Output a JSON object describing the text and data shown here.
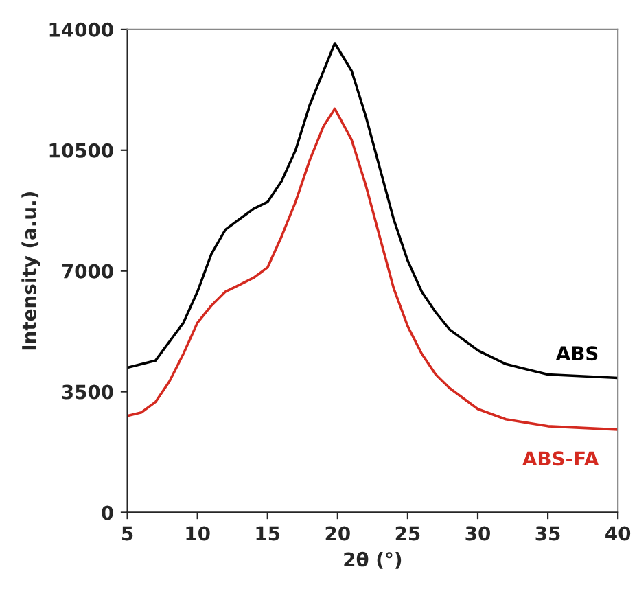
{
  "chart_data": {
    "type": "line",
    "xlabel": "2θ (°)",
    "ylabel": "Intensity (a.u.)",
    "xlim": [
      5,
      40
    ],
    "xticks": [
      5,
      10,
      15,
      20,
      25,
      30,
      35,
      40
    ],
    "ylim": [
      0,
      14000
    ],
    "yticks": [
      0,
      3500,
      7000,
      10500,
      14000
    ],
    "grid": false,
    "legend": false,
    "series": [
      {
        "name": "ABS",
        "color": "#000000",
        "x": [
          5,
          7,
          9,
          10,
          11,
          12,
          13,
          14,
          15,
          16,
          17,
          18,
          19,
          19.8,
          21,
          22,
          23,
          24,
          25,
          26,
          27,
          28,
          30,
          32,
          35,
          40
        ],
        "values": [
          4200,
          4400,
          5500,
          6400,
          7500,
          8200,
          8500,
          8800,
          9000,
          9600,
          10500,
          11800,
          12800,
          13600,
          12800,
          11500,
          10000,
          8500,
          7300,
          6400,
          5800,
          5300,
          4700,
          4300,
          4000,
          3900
        ]
      },
      {
        "name": "ABS-FA",
        "color": "#d42a20",
        "x": [
          5,
          6,
          7,
          8,
          9,
          10,
          11,
          12,
          13,
          14,
          15,
          16,
          17,
          18,
          19,
          19.8,
          21,
          22,
          23,
          24,
          25,
          26,
          27,
          28,
          30,
          32,
          35,
          40
        ],
        "values": [
          2800,
          2900,
          3200,
          3800,
          4600,
          5500,
          6000,
          6400,
          6600,
          6800,
          7100,
          8000,
          9000,
          10200,
          11200,
          11700,
          10800,
          9500,
          8000,
          6500,
          5400,
          4600,
          4000,
          3600,
          3000,
          2700,
          2500,
          2400
        ]
      }
    ]
  }
}
